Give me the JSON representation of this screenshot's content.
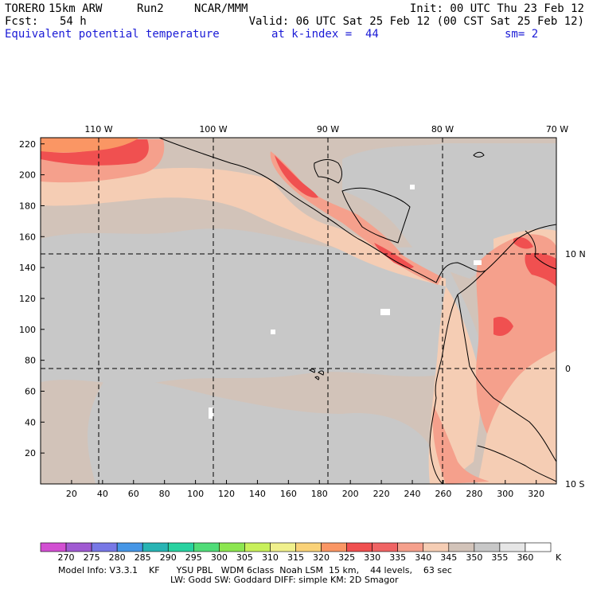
{
  "header": {
    "model": "TORERO",
    "resolution": "15km ARW",
    "run": "Run2",
    "org": "NCAR/MMM",
    "init": "Init: 00 UTC Thu 23 Feb 12",
    "fcst_label": "Fcst:",
    "fcst_value": "54 h",
    "valid": "Valid: 06 UTC Sat 25 Feb 12 (00 CST Sat 25 Feb 12)"
  },
  "field": {
    "name": "Equivalent potential temperature",
    "level": "at k-index =  44",
    "smoothing": "sm= 2"
  },
  "map": {
    "x_ticks": [
      "20",
      "40",
      "60",
      "80",
      "100",
      "120",
      "140",
      "160",
      "180",
      "200",
      "220",
      "240",
      "260",
      "280",
      "300",
      "320"
    ],
    "y_ticks": [
      "20",
      "40",
      "60",
      "80",
      "100",
      "120",
      "140",
      "160",
      "180",
      "200",
      "220"
    ],
    "lon_labels": [
      "110 W",
      "100 W",
      "90 W",
      "80 W",
      "70 W"
    ],
    "lat_labels": [
      "10 N",
      "0",
      "10 S"
    ]
  },
  "colorbar": {
    "labels": [
      "270",
      "275",
      "280",
      "285",
      "290",
      "295",
      "300",
      "305",
      "310",
      "315",
      "320",
      "325",
      "330",
      "335",
      "340",
      "345",
      "350",
      "355",
      "360"
    ],
    "unit": "K",
    "colors": [
      "#d24fd2",
      "#a05ad2",
      "#7878e6",
      "#4696e6",
      "#28b4b4",
      "#28d2a0",
      "#50dc78",
      "#8ce650",
      "#c8f05a",
      "#f0f08c",
      "#fad278",
      "#fa9664",
      "#f05050",
      "#f06464",
      "#f5a08c",
      "#f5cdb4",
      "#d2c3b9",
      "#c8c8c8",
      "#e6e6e6",
      "#ffffff"
    ]
  },
  "footer": {
    "line1": "Model Info: V3.3.1    KF      YSU PBL   WDM 6class  Noah LSM  15 km,    44 levels,    63 sec",
    "line2": "LW: Godd SW: Goddard DIFF: simple KM: 2D Smagor"
  }
}
